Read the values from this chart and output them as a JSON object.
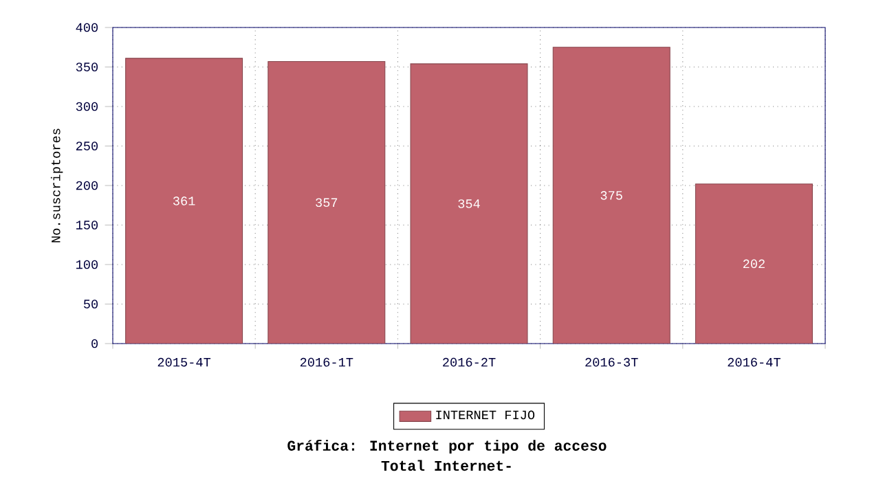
{
  "chart_data": {
    "type": "bar",
    "title": "Gráfica: Internet por tipo de acceso",
    "subtitle": "Total Internet-",
    "ylabel": "No.suscriptores",
    "categories": [
      "2015-4T",
      "2016-1T",
      "2016-2T",
      "2016-3T",
      "2016-4T"
    ],
    "series": [
      {
        "name": "INTERNET FIJO",
        "color": "#c0626c",
        "values": [
          361,
          357,
          354,
          375,
          202
        ]
      }
    ],
    "ylim": [
      0,
      400
    ],
    "yticks": [
      0,
      50,
      100,
      150,
      200,
      250,
      300,
      350,
      400
    ],
    "grid": true,
    "legend": "bottom",
    "data_labels": true
  }
}
